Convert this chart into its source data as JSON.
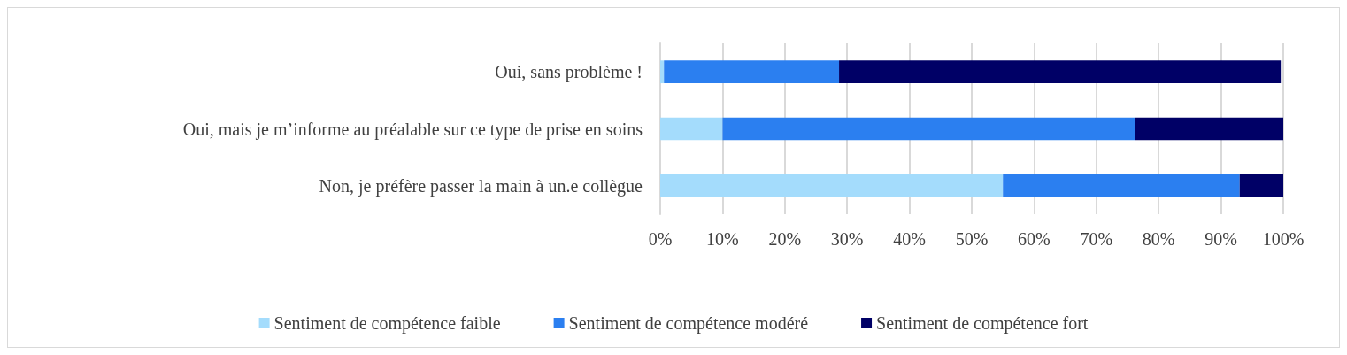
{
  "chart_data": {
    "type": "bar",
    "orientation": "horizontal",
    "stacked": true,
    "categories": [
      "Oui, sans problème !",
      "Oui, mais je m’informe au préalable sur ce type de prise en soins",
      "Non, je préfère passer la main à un.e collègue"
    ],
    "series": [
      {
        "name": "Sentiment de compétence faible",
        "color": "#a4dcfc",
        "values": [
          0.6,
          10,
          55
        ]
      },
      {
        "name": "Sentiment de compétence modéré",
        "color": "#2b7ff0",
        "values": [
          28.1,
          66.2,
          38
        ]
      },
      {
        "name": "Sentiment de compétence fort",
        "color": "#000066",
        "values": [
          70.9,
          23.8,
          7
        ]
      }
    ],
    "xlim": [
      0,
      100
    ],
    "xticks": [
      {
        "value": 0,
        "label": "0%"
      },
      {
        "value": 10,
        "label": "10%"
      },
      {
        "value": 20,
        "label": "20%"
      },
      {
        "value": 30,
        "label": "30%"
      },
      {
        "value": 40,
        "label": "40%"
      },
      {
        "value": 50,
        "label": "50%"
      },
      {
        "value": 60,
        "label": "60%"
      },
      {
        "value": 70,
        "label": "70%"
      },
      {
        "value": 80,
        "label": "80%"
      },
      {
        "value": 90,
        "label": "90%"
      },
      {
        "value": 100,
        "label": "100%"
      }
    ],
    "grid": "x",
    "legend": "bottom"
  }
}
